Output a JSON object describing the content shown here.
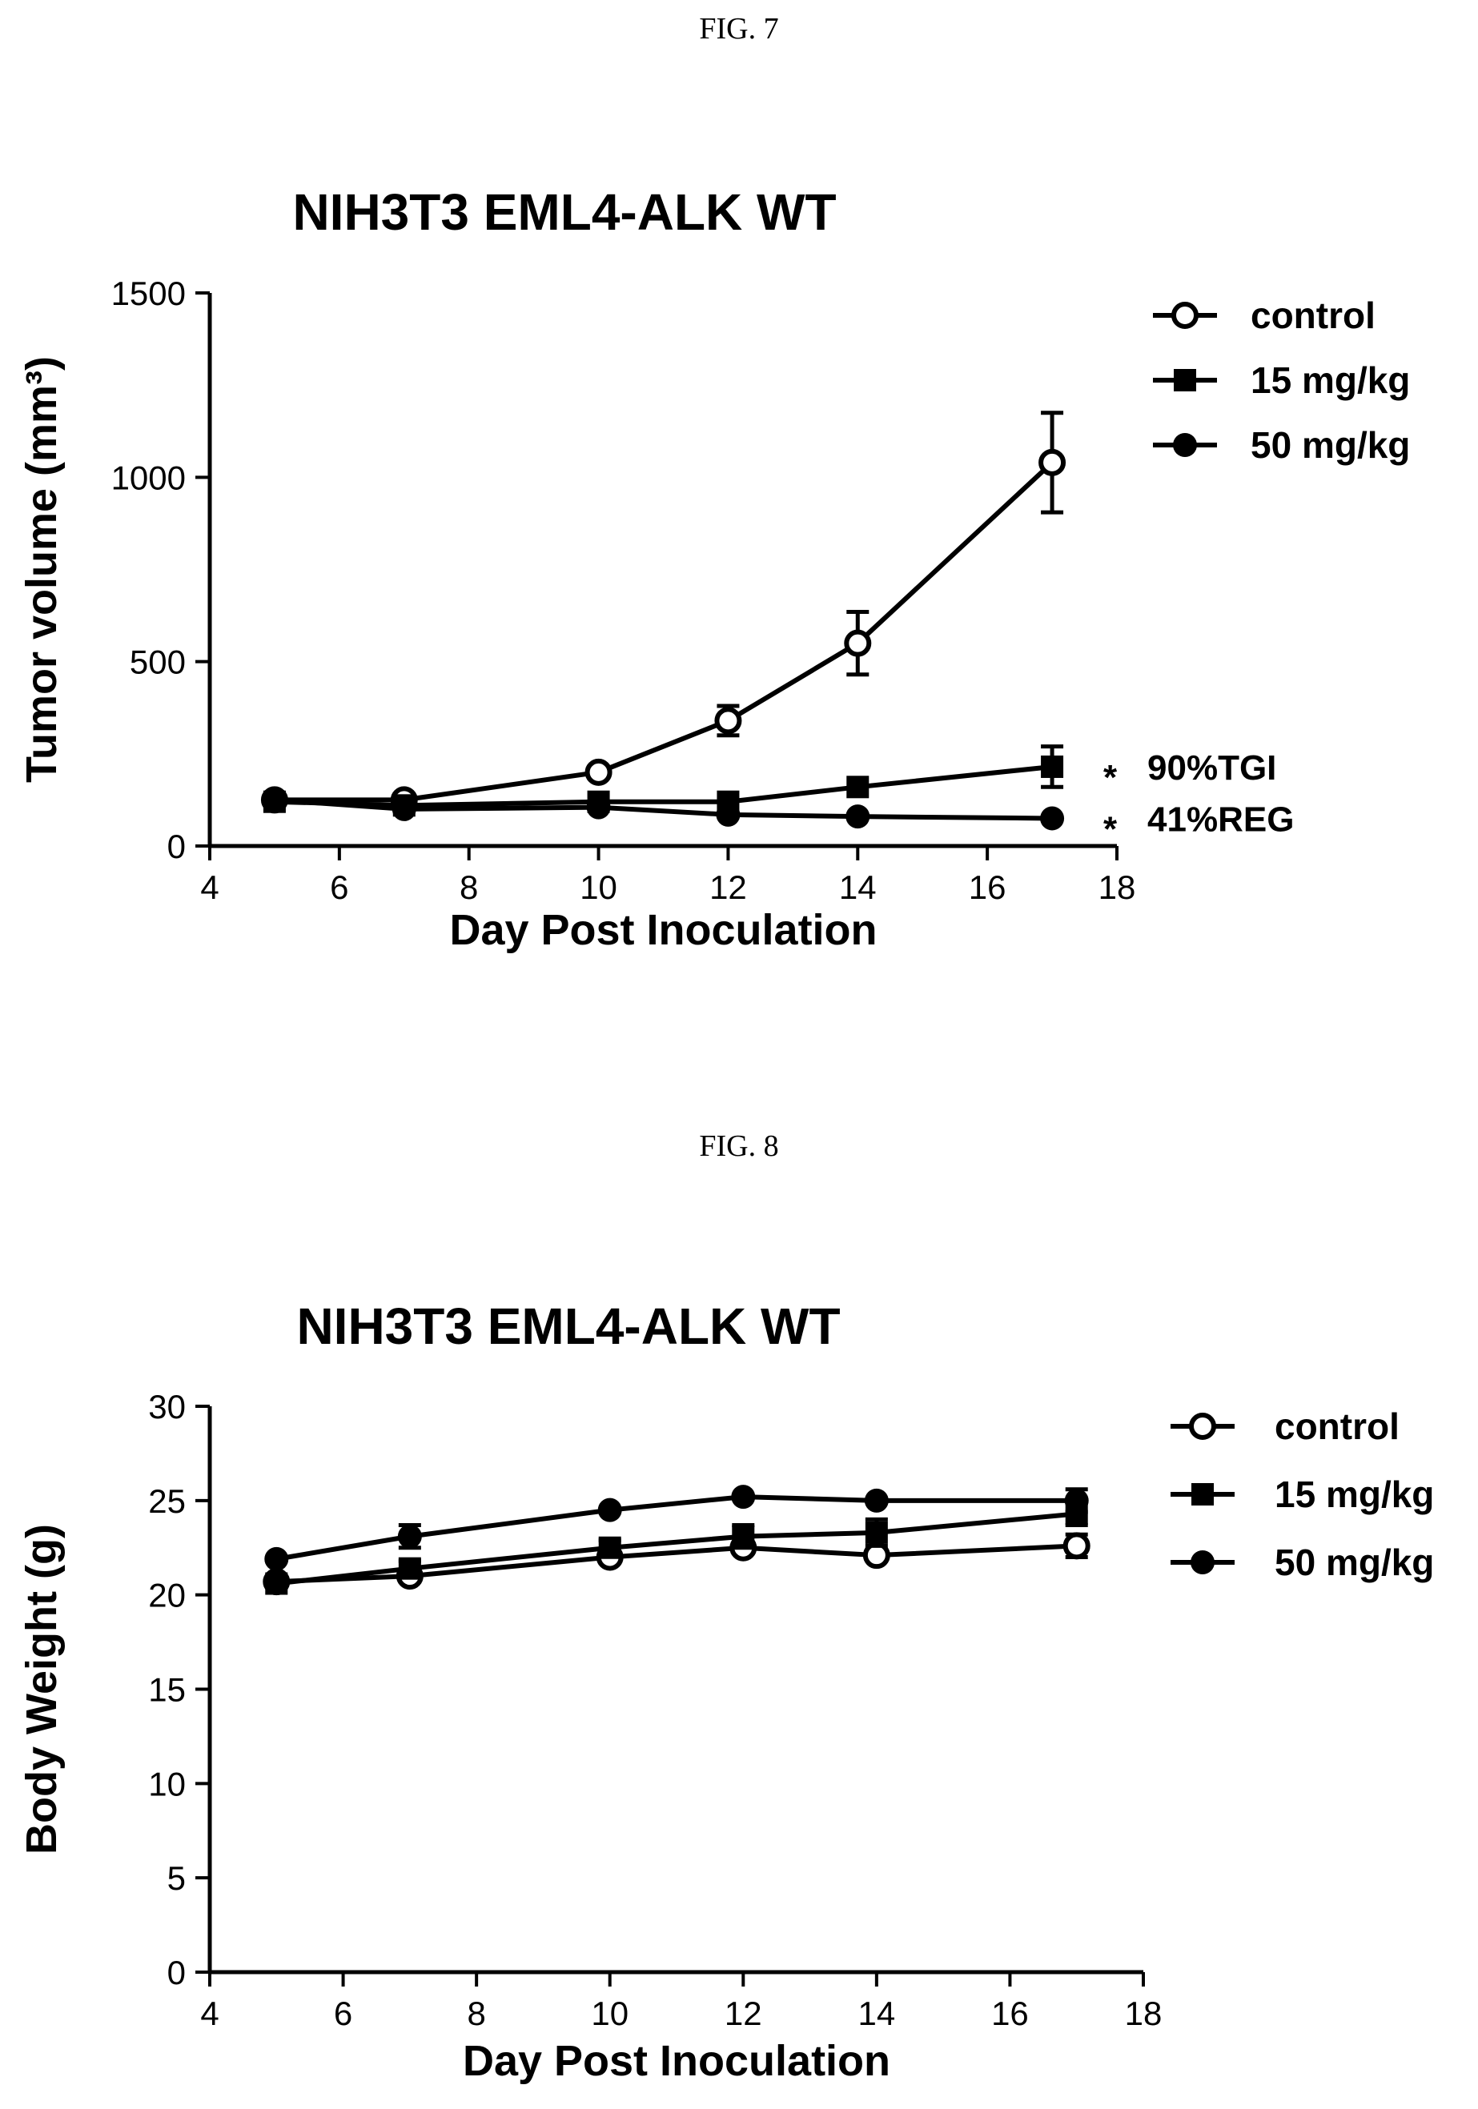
{
  "figures": [
    {
      "label": "FIG. 7"
    },
    {
      "label": "FIG. 8"
    }
  ],
  "chart_data": [
    {
      "type": "line",
      "title": "NIH3T3 EML4-ALK WT",
      "xlabel": "Day Post Inoculation",
      "ylabel": "Tumor volume (mm³)",
      "xlim": [
        4,
        18
      ],
      "ylim": [
        0,
        1500
      ],
      "xticks": [
        4,
        6,
        8,
        10,
        12,
        14,
        16,
        18
      ],
      "yticks": [
        0,
        500,
        1000,
        1500
      ],
      "grid": false,
      "legend_position": "top-right",
      "series": [
        {
          "name": "control",
          "marker": "open-circle",
          "x": [
            5,
            7,
            10,
            12,
            14,
            17
          ],
          "y": [
            125,
            125,
            200,
            340,
            550,
            1040
          ],
          "err": [
            0,
            0,
            0,
            40,
            85,
            135
          ]
        },
        {
          "name": "15 mg/kg",
          "marker": "square",
          "x": [
            5,
            7,
            10,
            12,
            14,
            17
          ],
          "y": [
            120,
            110,
            120,
            120,
            160,
            215
          ],
          "err": [
            0,
            0,
            0,
            0,
            0,
            55
          ]
        },
        {
          "name": "50 mg/kg",
          "marker": "filled-circle",
          "x": [
            5,
            7,
            10,
            12,
            14,
            17
          ],
          "y": [
            125,
            100,
            105,
            85,
            80,
            75
          ],
          "err": [
            0,
            0,
            0,
            0,
            0,
            0
          ]
        }
      ],
      "annotations": [
        {
          "series": "15 mg/kg",
          "star": "*",
          "text": "90%TGI"
        },
        {
          "series": "50 mg/kg",
          "star": "*",
          "text": "41%REG"
        }
      ]
    },
    {
      "type": "line",
      "title": "NIH3T3 EML4-ALK WT",
      "xlabel": "Day Post Inoculation",
      "ylabel": "Body Weight (g)",
      "xlim": [
        4,
        18
      ],
      "ylim": [
        0,
        30
      ],
      "xticks": [
        4,
        6,
        8,
        10,
        12,
        14,
        16,
        18
      ],
      "yticks": [
        0,
        5,
        10,
        15,
        20,
        25,
        30
      ],
      "grid": false,
      "legend_position": "top-right",
      "series": [
        {
          "name": "control",
          "marker": "open-circle",
          "x": [
            5,
            7,
            10,
            12,
            14,
            17
          ],
          "y": [
            20.7,
            21.0,
            22.0,
            22.5,
            22.1,
            22.6
          ],
          "err": [
            0,
            0,
            0,
            0,
            0,
            0.6
          ]
        },
        {
          "name": "15 mg/kg",
          "marker": "square",
          "x": [
            5,
            7,
            10,
            12,
            14,
            17
          ],
          "y": [
            20.6,
            21.4,
            22.5,
            23.1,
            23.3,
            24.3
          ],
          "err": [
            0,
            0.4,
            0.4,
            0.6,
            0.7,
            0.6
          ]
        },
        {
          "name": "50 mg/kg",
          "marker": "filled-circle",
          "x": [
            5,
            7,
            10,
            12,
            14,
            17
          ],
          "y": [
            21.9,
            23.1,
            24.5,
            25.2,
            25.0,
            25.0
          ],
          "err": [
            0,
            0.6,
            0,
            0,
            0,
            0.6
          ]
        }
      ],
      "annotations": []
    }
  ]
}
